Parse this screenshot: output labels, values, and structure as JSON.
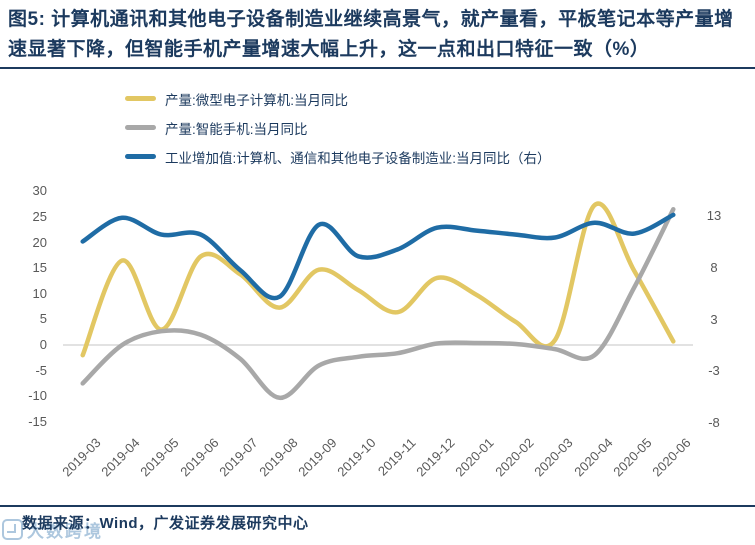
{
  "figure": {
    "title": "图5: 计算机通讯和其他电子设备制造业继续高景气，就产量看，平板笔记本等产量增速显著下降，但智能手机产量增速大幅上升，这一点和出口特征一致（%）",
    "footer": "数据来源：Wind，广发证券发展研究中心",
    "watermark": "大数跨境"
  },
  "colors": {
    "accent_navy": "#1C3A5E",
    "axis_text": "#595959",
    "zero_gridline": "#D9D9D9",
    "series_yellow": "#E2C763",
    "series_gray": "#A8A8A8",
    "series_blue": "#1F6CA5"
  },
  "chart_data": {
    "type": "line",
    "smoothed": true,
    "legend_position": "top-left",
    "grid": "zero-line-only",
    "categories": [
      "2019-03",
      "2019-04",
      "2019-05",
      "2019-06",
      "2019-07",
      "2019-08",
      "2019-09",
      "2019-10",
      "2019-11",
      "2019-12",
      "2020-01",
      "2020-02",
      "2020-03",
      "2020-04",
      "2020-05",
      "2020-06"
    ],
    "series": [
      {
        "name": "产量:微型电子计算机:当月同比",
        "axis": "left",
        "color": "#E2C763",
        "values": [
          -2,
          16.5,
          3,
          17.3,
          13.8,
          7.3,
          14.7,
          10.7,
          6.4,
          13.1,
          9.8,
          4.5,
          1,
          27.3,
          14.6,
          0.7
        ]
      },
      {
        "name": "产量:智能手机:当月同比",
        "axis": "left",
        "color": "#A8A8A8",
        "values": [
          -7.5,
          0,
          2.7,
          2,
          -2.7,
          -10.3,
          -4,
          -2.3,
          -1.6,
          0.3,
          0.4,
          0.2,
          -0.8,
          -2,
          11.1,
          26.5
        ]
      },
      {
        "name": "工业增加值:计算机、通信和其他电子设备制造业:当月同比（右）",
        "axis": "right",
        "color": "#1F6CA5",
        "values": [
          10.4,
          12.8,
          11.1,
          11.1,
          7.5,
          4.8,
          12.1,
          8.9,
          9.6,
          11.8,
          11.5,
          11.1,
          10.8,
          12.3,
          11.2,
          13.1
        ]
      }
    ],
    "left_axis": {
      "ticks": [
        "30",
        "25",
        "20",
        "15",
        "10",
        "5",
        "0",
        "-5",
        "-10",
        "-15"
      ],
      "min": -15,
      "max": 30
    },
    "right_axis": {
      "ticks": [
        "13",
        "8",
        "3",
        "-3",
        "-8"
      ],
      "min": -8,
      "max": 13
    }
  }
}
